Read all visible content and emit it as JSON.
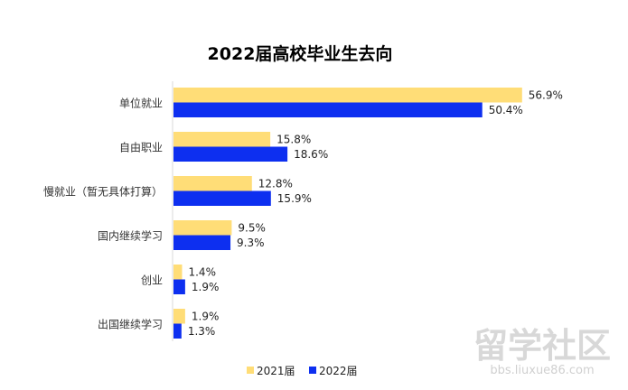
{
  "chart_data": {
    "type": "bar",
    "orientation": "horizontal",
    "title": "2022届高校毕业生去向",
    "categories": [
      "单位就业",
      "自由职业",
      "慢就业（暂无具体打算）",
      "国内继续学习",
      "创业",
      "出国继续学习"
    ],
    "series": [
      {
        "name": "2021届",
        "values": [
          56.9,
          15.8,
          12.8,
          9.5,
          1.4,
          1.9
        ],
        "labels": [
          "56.9%",
          "15.8%",
          "12.8%",
          "9.5%",
          "1.4%",
          "1.9%"
        ],
        "color": "#FFDD77"
      },
      {
        "name": "2022届",
        "values": [
          50.4,
          18.6,
          15.9,
          9.3,
          1.9,
          1.3
        ],
        "labels": [
          "50.4%",
          "18.6%",
          "15.9%",
          "9.3%",
          "1.9%",
          "1.3%"
        ],
        "color": "#0D2FF0"
      }
    ],
    "xlim": [
      0,
      60
    ],
    "grid": false,
    "legend_position": "bottom-center"
  },
  "watermark": {
    "main": "留学社区",
    "sub": "bbs.liuxue86.com"
  }
}
